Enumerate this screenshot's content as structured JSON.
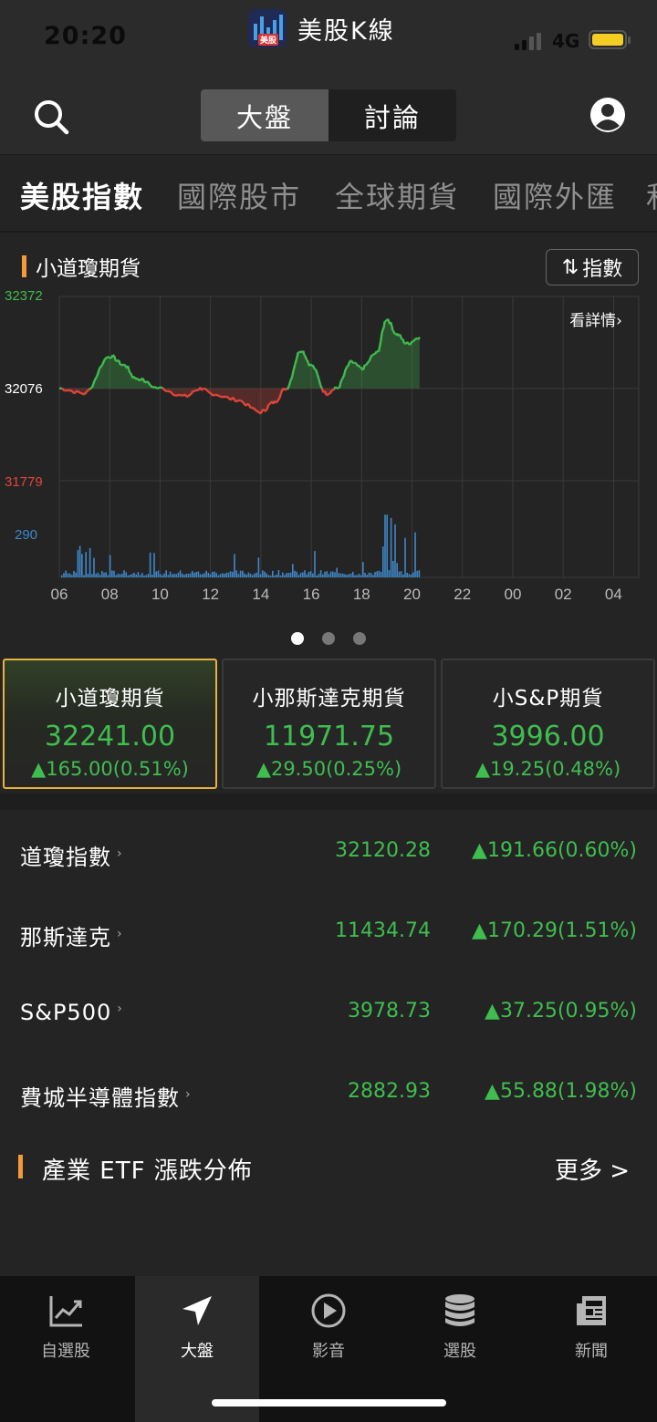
{
  "status_bar": {
    "time": "20:20",
    "network": "4G",
    "app_name": "美股K線",
    "app_logo_text": "美股"
  },
  "header": {
    "segments": [
      {
        "label": "大盤",
        "active": true
      },
      {
        "label": "討論",
        "active": false
      }
    ],
    "icons": {
      "search": "search-icon",
      "user": "user-icon"
    }
  },
  "categories": [
    {
      "label": "美股指數",
      "active": true
    },
    {
      "label": "國際股市",
      "active": false
    },
    {
      "label": "全球期貨",
      "active": false
    },
    {
      "label": "國際外匯",
      "active": false
    },
    {
      "label": "和",
      "active": false
    }
  ],
  "chart": {
    "title": "小道瓊期貨",
    "toggle_label": "指數",
    "toggle_icon": "sort-arrows-icon",
    "detail_label": "看詳情",
    "page_dots": {
      "count": 3,
      "active": 0
    }
  },
  "chart_data": {
    "type": "line",
    "series_note": "intraday price with volume bars",
    "y_ticks": [
      "32372",
      "32076",
      "31779"
    ],
    "volume_tick": "290",
    "baseline": 32076,
    "ylim": [
      31779,
      32372
    ],
    "x_ticks": [
      "06",
      "08",
      "10",
      "12",
      "14",
      "16",
      "18",
      "20",
      "22",
      "00",
      "02",
      "04"
    ],
    "x_hours": [
      6,
      7,
      8,
      8.6,
      9,
      10,
      11,
      11.6,
      12,
      13,
      14,
      14.5,
      15,
      15.6,
      16,
      16.6,
      17,
      17.6,
      18,
      18.6,
      19,
      19.4,
      19.8,
      20.3
    ],
    "prices": [
      32076,
      32060,
      32180,
      32150,
      32110,
      32076,
      32050,
      32076,
      32060,
      32040,
      32000,
      32030,
      32076,
      32200,
      32150,
      32060,
      32076,
      32160,
      32140,
      32190,
      32300,
      32250,
      32220,
      32241
    ],
    "colors": {
      "up": "#3fbd4f",
      "down": "#e0453b",
      "volume": "#3f87c9",
      "grid": "#3a3a3a"
    }
  },
  "cards": [
    {
      "name": "小道瓊期貨",
      "price": "32241.00",
      "change": "▲165.00(0.51%)",
      "selected": true
    },
    {
      "name": "小那斯達克期貨",
      "price": "11971.75",
      "change": "▲29.50(0.25%)",
      "selected": false
    },
    {
      "name": "小S&P期貨",
      "price": "3996.00",
      "change": "▲19.25(0.48%)",
      "selected": false
    }
  ],
  "indices": [
    {
      "name": "道瓊指數",
      "price": "32120.28",
      "change": "▲191.66(0.60%)"
    },
    {
      "name": "那斯達克",
      "price": "11434.74",
      "change": "▲170.29(1.51%)"
    },
    {
      "name": "S&P500",
      "price": "3978.73",
      "change": "▲37.25(0.95%)"
    },
    {
      "name": "費城半導體指數",
      "price": "2882.93",
      "change": "▲55.88(1.98%)"
    }
  ],
  "etf_section": {
    "title": "產業 ETF 漲跌分佈",
    "more": "更多 >"
  },
  "nav": [
    {
      "label": "自選股",
      "icon": "chart-line-icon",
      "active": false
    },
    {
      "label": "大盤",
      "icon": "navigation-arrow-icon",
      "active": true
    },
    {
      "label": "影音",
      "icon": "play-circle-icon",
      "active": false
    },
    {
      "label": "選股",
      "icon": "database-stack-icon",
      "active": false
    },
    {
      "label": "新聞",
      "icon": "newspaper-icon",
      "active": false
    }
  ]
}
